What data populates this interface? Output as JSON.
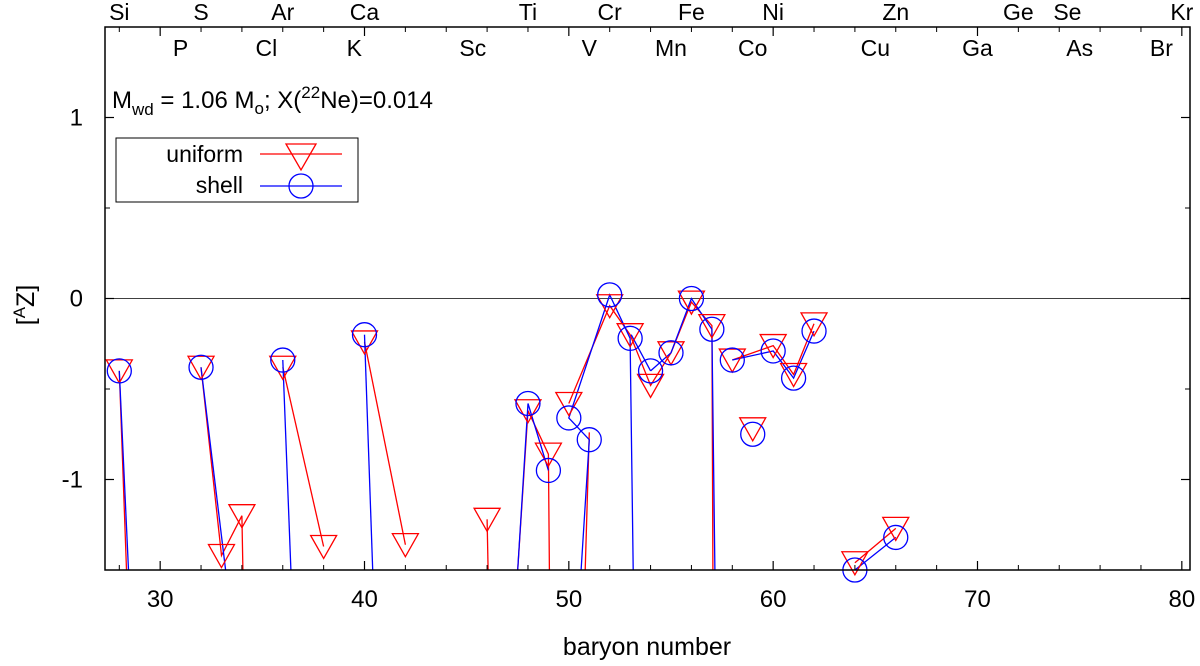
{
  "chart_data": {
    "type": "line",
    "xlabel": "baryon number",
    "ylabel": "[AZ]",
    "ylabel_base": "[",
    "ylabel_sup": "A",
    "ylabel_rest": "Z]",
    "xlim": [
      27.3,
      80.4
    ],
    "ylim": [
      -1.5,
      1.5
    ],
    "x_ticks": [
      30,
      40,
      50,
      60,
      70,
      80
    ],
    "y_ticks": [
      -1,
      0,
      1
    ],
    "x_tick_labels": [
      "30",
      "40",
      "50",
      "60",
      "70",
      "80"
    ],
    "y_tick_labels": [
      "-1",
      "0",
      "1"
    ],
    "zero_line": 0,
    "grid": false,
    "legend_position": "upper-left",
    "annotation": {
      "m": "M",
      "m_sub": "wd",
      "mid": " = 1.06 M",
      "o_sub": "o",
      "x_open": "; X(",
      "ne_sup": "22",
      "ne_rest": "Ne)=0.014"
    },
    "top_elements_row1": [
      {
        "label": "Si",
        "x": 28
      },
      {
        "label": "S",
        "x": 32
      },
      {
        "label": "Ar",
        "x": 36
      },
      {
        "label": "Ca",
        "x": 40
      },
      {
        "label": "Ti",
        "x": 48
      },
      {
        "label": "Cr",
        "x": 52
      },
      {
        "label": "Fe",
        "x": 56
      },
      {
        "label": "Ni",
        "x": 60
      },
      {
        "label": "Zn",
        "x": 66
      },
      {
        "label": "Ge",
        "x": 72
      },
      {
        "label": "Se",
        "x": 74.4
      },
      {
        "label": "Kr",
        "x": 80
      }
    ],
    "top_elements_row2": [
      {
        "label": "P",
        "x": 31
      },
      {
        "label": "Cl",
        "x": 35.2
      },
      {
        "label": "K",
        "x": 39.5
      },
      {
        "label": "Sc",
        "x": 45.3
      },
      {
        "label": "V",
        "x": 51
      },
      {
        "label": "Mn",
        "x": 55
      },
      {
        "label": "Co",
        "x": 59
      },
      {
        "label": "Cu",
        "x": 65
      },
      {
        "label": "Ga",
        "x": 70
      },
      {
        "label": "As",
        "x": 75
      },
      {
        "label": "Br",
        "x": 79
      }
    ],
    "series": [
      {
        "name": "uniform",
        "color": "#ff0000",
        "marker": "triangle-down",
        "segments": [
          [
            [
              28,
              -0.4
            ],
            [
              28.35,
              -1.5
            ]
          ],
          [
            [
              32,
              -0.38
            ],
            [
              33,
              -1.42
            ],
            [
              34,
              -1.2
            ],
            [
              34.05,
              -1.5
            ]
          ],
          [
            [
              36,
              -0.38
            ],
            [
              38,
              -1.37
            ]
          ],
          [
            [
              40,
              -0.24
            ],
            [
              42,
              -1.36
            ]
          ],
          [
            [
              46,
              -1.22
            ],
            [
              46.05,
              -1.5
            ]
          ],
          [
            [
              47.5,
              -1.5
            ],
            [
              48,
              -0.62
            ],
            [
              49,
              -0.86
            ],
            [
              49.05,
              -1.5
            ]
          ],
          [
            [
              50,
              -0.58
            ],
            [
              52,
              -0.04
            ],
            [
              53,
              -0.2
            ],
            [
              54,
              -0.48
            ],
            [
              55,
              -0.3
            ],
            [
              56,
              -0.02
            ],
            [
              57,
              -0.15
            ],
            [
              57.05,
              -1.5
            ]
          ],
          [
            [
              58,
              -0.34
            ],
            [
              60,
              -0.26
            ],
            [
              61,
              -0.42
            ],
            [
              62,
              -0.14
            ]
          ],
          [
            [
              59,
              -0.72
            ]
          ],
          [
            [
              64,
              -1.46
            ],
            [
              66,
              -1.27
            ]
          ]
        ],
        "extra_edges": [
          [
            [
              50.8,
              -1.5
            ],
            [
              51,
              -0.74
            ]
          ]
        ]
      },
      {
        "name": "shell",
        "color": "#0000ff",
        "marker": "circle",
        "segments": [
          [
            [
              28,
              -0.4
            ],
            [
              28.45,
              -1.5
            ]
          ],
          [
            [
              32,
              -0.38
            ],
            [
              33.2,
              -1.5
            ]
          ],
          [
            [
              36,
              -0.34
            ],
            [
              36.4,
              -1.5
            ]
          ],
          [
            [
              40,
              -0.2
            ],
            [
              40.4,
              -1.5
            ]
          ],
          [
            [
              47.5,
              -1.5
            ],
            [
              48,
              -0.58
            ],
            [
              49,
              -0.95
            ]
          ],
          [
            [
              50.6,
              -1.5
            ],
            [
              51,
              -0.78
            ],
            [
              50,
              -0.66
            ],
            [
              52,
              0.02
            ],
            [
              53,
              -0.22
            ],
            [
              53.15,
              -1.5
            ]
          ],
          [
            [
              54,
              -0.4
            ],
            [
              55,
              -0.3
            ],
            [
              56,
              0.0
            ],
            [
              57,
              -0.17
            ],
            [
              57.15,
              -1.5
            ]
          ],
          [
            [
              58,
              -0.34
            ],
            [
              60,
              -0.29
            ],
            [
              61,
              -0.44
            ],
            [
              62,
              -0.18
            ]
          ],
          [
            [
              59,
              -0.75
            ]
          ],
          [
            [
              64,
              -1.5
            ],
            [
              66,
              -1.32
            ]
          ]
        ],
        "extra_edges": [
          [
            [
              53.05,
              -0.2
            ],
            [
              54,
              -0.4
            ]
          ]
        ]
      }
    ]
  }
}
